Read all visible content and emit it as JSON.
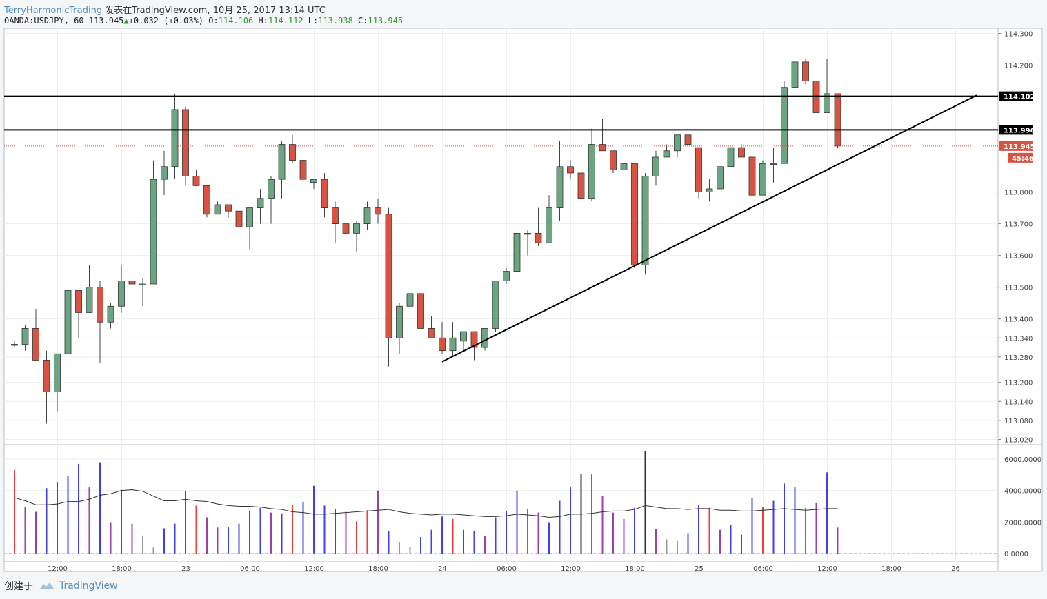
{
  "header": {
    "author": "TerryHarmonicTrading",
    "published": "发表在TradingView.com, 10月 25, 2017 13:14 UTC",
    "symbol": "OANDA:USDJPY, 60",
    "last": "113.945",
    "change": "+0.032 (+0.03%)",
    "o_label": "O:",
    "o": "114.106",
    "h_label": "H:",
    "h": "114.112",
    "l_label": "L:",
    "l": "113.938",
    "c_label": "C:",
    "c": "113.945"
  },
  "footer": {
    "created_with": "创建于",
    "brand": "TradingView"
  },
  "colors": {
    "up": "#6ba583",
    "down": "#d75442",
    "vol_blue": "#3f3ff0",
    "vol_red": "#f23b3b",
    "vol_purple": "#9c3fa6",
    "vol_gray": "#9a9a9a"
  },
  "chart_data": {
    "type": "candlestick",
    "y_range": [
      113.0,
      114.32
    ],
    "y_ticks": [
      "114.300",
      "114.200",
      "113.800",
      "113.700",
      "113.600",
      "113.500",
      "113.400",
      "113.340",
      "113.280",
      "113.200",
      "113.140",
      "113.080",
      "113.020"
    ],
    "y_tick_values": [
      114.3,
      114.2,
      113.8,
      113.7,
      113.6,
      113.5,
      113.4,
      113.34,
      113.28,
      113.2,
      113.14,
      113.08,
      113.02
    ],
    "x_labels": [
      "12:00",
      "18:00",
      "23",
      "06:00",
      "12:00",
      "18:00",
      "24",
      "06:00",
      "12:00",
      "18:00",
      "25",
      "06:00",
      "12:00",
      "18:00",
      "26"
    ],
    "x_label_bars": [
      4,
      10,
      16,
      22,
      28,
      34,
      40,
      46,
      52,
      58,
      64,
      70,
      76,
      82,
      88
    ],
    "candles": [
      [
        113.32,
        113.33,
        113.31,
        113.32
      ],
      [
        113.32,
        113.38,
        113.3,
        113.37
      ],
      [
        113.37,
        113.43,
        113.27,
        113.27
      ],
      [
        113.27,
        113.3,
        113.07,
        113.17
      ],
      [
        113.17,
        113.29,
        113.11,
        113.29
      ],
      [
        113.29,
        113.5,
        113.27,
        113.49
      ],
      [
        113.49,
        113.49,
        113.34,
        113.42
      ],
      [
        113.42,
        113.57,
        113.42,
        113.5
      ],
      [
        113.5,
        113.52,
        113.26,
        113.39
      ],
      [
        113.39,
        113.45,
        113.37,
        113.44
      ],
      [
        113.44,
        113.57,
        113.42,
        113.52
      ],
      [
        113.52,
        113.53,
        113.51,
        113.51
      ],
      [
        113.51,
        113.53,
        113.44,
        113.51
      ],
      [
        113.51,
        113.9,
        113.51,
        113.84
      ],
      [
        113.84,
        113.93,
        113.79,
        113.88
      ],
      [
        113.88,
        114.11,
        113.84,
        114.06
      ],
      [
        114.06,
        114.07,
        113.82,
        113.85
      ],
      [
        113.85,
        113.87,
        113.82,
        113.82
      ],
      [
        113.82,
        113.82,
        113.72,
        113.73
      ],
      [
        113.73,
        113.77,
        113.73,
        113.76
      ],
      [
        113.76,
        113.76,
        113.72,
        113.74
      ],
      [
        113.74,
        113.74,
        113.67,
        113.69
      ],
      [
        113.69,
        113.75,
        113.62,
        113.75
      ],
      [
        113.75,
        113.81,
        113.7,
        113.78
      ],
      [
        113.78,
        113.85,
        113.7,
        113.84
      ],
      [
        113.84,
        113.96,
        113.78,
        113.95
      ],
      [
        113.95,
        113.98,
        113.89,
        113.9
      ],
      [
        113.9,
        113.95,
        113.8,
        113.84
      ],
      [
        113.83,
        113.84,
        113.81,
        113.84
      ],
      [
        113.84,
        113.86,
        113.72,
        113.75
      ],
      [
        113.75,
        113.77,
        113.64,
        113.7
      ],
      [
        113.7,
        113.73,
        113.65,
        113.67
      ],
      [
        113.67,
        113.71,
        113.61,
        113.7
      ],
      [
        113.7,
        113.77,
        113.68,
        113.75
      ],
      [
        113.75,
        113.78,
        113.7,
        113.73
      ],
      [
        113.73,
        113.75,
        113.25,
        113.34
      ],
      [
        113.34,
        113.45,
        113.29,
        113.44
      ],
      [
        113.44,
        113.48,
        113.43,
        113.48
      ],
      [
        113.48,
        113.48,
        113.37,
        113.37
      ],
      [
        113.37,
        113.41,
        113.34,
        113.34
      ],
      [
        113.34,
        113.39,
        113.29,
        113.3
      ],
      [
        113.3,
        113.39,
        113.28,
        113.34
      ],
      [
        113.33,
        113.36,
        113.3,
        113.36
      ],
      [
        113.36,
        113.36,
        113.27,
        113.31
      ],
      [
        113.31,
        113.37,
        113.3,
        113.37
      ],
      [
        113.37,
        113.52,
        113.36,
        113.52
      ],
      [
        113.52,
        113.56,
        113.51,
        113.55
      ],
      [
        113.55,
        113.71,
        113.54,
        113.67
      ],
      [
        113.67,
        113.68,
        113.6,
        113.67
      ],
      [
        113.67,
        113.75,
        113.63,
        113.64
      ],
      [
        113.64,
        113.79,
        113.64,
        113.75
      ],
      [
        113.75,
        113.96,
        113.71,
        113.88
      ],
      [
        113.88,
        113.9,
        113.84,
        113.86
      ],
      [
        113.86,
        113.93,
        113.78,
        113.78
      ],
      [
        113.78,
        114.0,
        113.77,
        113.95
      ],
      [
        113.95,
        114.03,
        113.93,
        113.93
      ],
      [
        113.93,
        113.93,
        113.86,
        113.87
      ],
      [
        113.87,
        113.9,
        113.82,
        113.89
      ],
      [
        113.89,
        113.89,
        113.56,
        113.57
      ],
      [
        113.57,
        113.86,
        113.54,
        113.85
      ],
      [
        113.85,
        113.93,
        113.82,
        113.91
      ],
      [
        113.91,
        113.95,
        113.91,
        113.93
      ],
      [
        113.93,
        113.98,
        113.91,
        113.98
      ],
      [
        113.98,
        113.98,
        113.93,
        113.95
      ],
      [
        113.94,
        113.94,
        113.78,
        113.8
      ],
      [
        113.8,
        113.84,
        113.77,
        113.81
      ],
      [
        113.81,
        113.88,
        113.81,
        113.88
      ],
      [
        113.88,
        113.94,
        113.88,
        113.94
      ],
      [
        113.94,
        113.95,
        113.91,
        113.91
      ],
      [
        113.91,
        113.91,
        113.74,
        113.79
      ],
      [
        113.79,
        113.9,
        113.79,
        113.89
      ],
      [
        113.89,
        113.94,
        113.83,
        113.89
      ],
      [
        113.89,
        114.15,
        113.89,
        114.13
      ],
      [
        114.13,
        114.24,
        114.12,
        114.21
      ],
      [
        114.21,
        114.22,
        114.14,
        114.15
      ],
      [
        114.15,
        114.15,
        114.05,
        114.05
      ],
      [
        114.05,
        114.22,
        114.05,
        114.11
      ],
      [
        114.11,
        114.11,
        113.94,
        113.945
      ]
    ],
    "volume_range": [
      0,
      6800
    ],
    "volume_ticks": [
      "6000.0000",
      "4000.0000",
      "2000.0000",
      "0.0000"
    ],
    "volume_tick_values": [
      6000,
      4000,
      2000,
      0
    ],
    "volume": [
      5300,
      2950,
      2650,
      4150,
      4550,
      4950,
      5700,
      4200,
      5800,
      1950,
      4050,
      1900,
      1150,
      380,
      1600,
      1900,
      3950,
      3050,
      2300,
      1650,
      1700,
      1900,
      2700,
      2900,
      2600,
      2550,
      3100,
      3250,
      4300,
      3050,
      2850,
      2650,
      2050,
      2750,
      4000,
      1450,
      750,
      420,
      1050,
      1500,
      2350,
      2200,
      1500,
      1450,
      1100,
      2300,
      2700,
      4000,
      2800,
      2600,
      1950,
      3350,
      4200,
      5050,
      5050,
      3650,
      2600,
      2200,
      2900,
      6500,
      1550,
      900,
      800,
      1300,
      3100,
      2900,
      1500,
      1800,
      1200,
      3550,
      2950,
      3350,
      4450,
      4200,
      2900,
      3200,
      5150,
      1650
    ],
    "volume_colors": [
      "r",
      "p",
      "p",
      "b",
      "b",
      "b",
      "b",
      "p",
      "b",
      "p",
      "b",
      "p",
      "g",
      "g",
      "b",
      "b",
      "b",
      "r",
      "p",
      "p",
      "b",
      "b",
      "b",
      "b",
      "p",
      "b",
      "r",
      "b",
      "b",
      "b",
      "b",
      "p",
      "r",
      "r",
      "p",
      "b",
      "g",
      "g",
      "b",
      "b",
      "b",
      "r",
      "b",
      "b",
      "p",
      "b",
      "b",
      "b",
      "r",
      "p",
      "b",
      "b",
      "b",
      "k",
      "r",
      "p",
      "p",
      "p",
      "b",
      "k",
      "p",
      "g",
      "g",
      "b",
      "b",
      "r",
      "p",
      "b",
      "b",
      "b",
      "r",
      "b",
      "b",
      "b",
      "r",
      "p",
      "b",
      "p"
    ],
    "volume_ma": [
      3550,
      3350,
      3100,
      3100,
      3150,
      3300,
      3300,
      3450,
      3700,
      3800,
      4000,
      4050,
      3950,
      3650,
      3350,
      3350,
      3450,
      3350,
      3300,
      3150,
      3050,
      3000,
      3000,
      2950,
      2850,
      2800,
      2650,
      2600,
      2500,
      2500,
      2550,
      2600,
      2650,
      2700,
      2750,
      2800,
      2650,
      2550,
      2500,
      2450,
      2500,
      2500,
      2450,
      2400,
      2350,
      2350,
      2400,
      2500,
      2450,
      2400,
      2300,
      2350,
      2500,
      2500,
      2550,
      2650,
      2700,
      2700,
      2800,
      3050,
      2950,
      2850,
      2850,
      2800,
      2850,
      2850,
      2750,
      2750,
      2700,
      2700,
      2750,
      2800,
      2850,
      2800,
      2750,
      2800,
      2850,
      2850
    ],
    "price_lines": [
      {
        "value": 114.102,
        "label": "114.102",
        "style": "solid"
      },
      {
        "value": 113.996,
        "label": "113.996",
        "style": "solid"
      }
    ],
    "last_price": {
      "value": 113.945,
      "label": "113.945",
      "countdown": "45:46"
    },
    "trendline": {
      "bar_start": 40,
      "price_start": 113.265,
      "bar_end": 90,
      "price_end": 114.105
    }
  }
}
